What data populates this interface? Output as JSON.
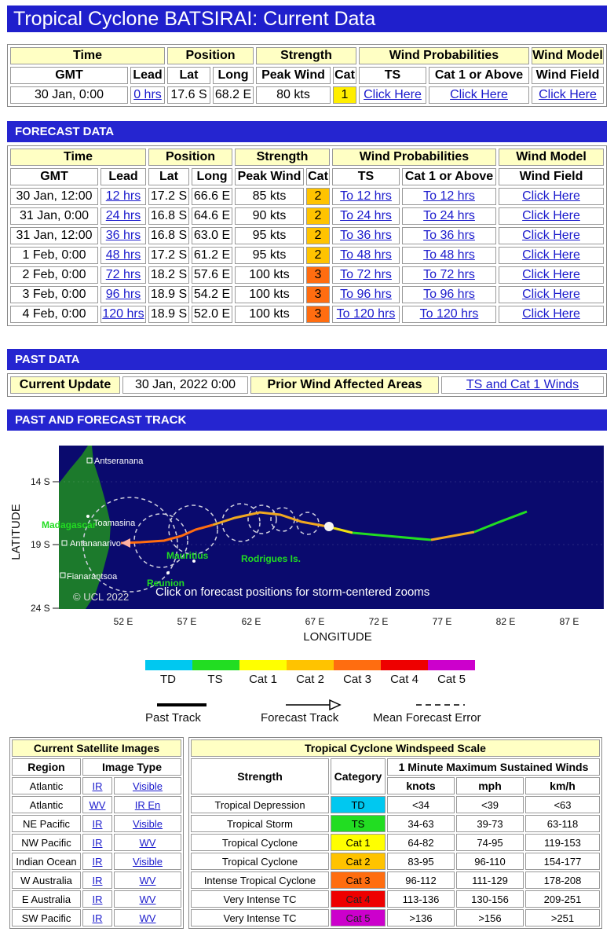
{
  "title": "Tropical Cyclone BATSIRAI: Current Data",
  "current": {
    "headers": {
      "time": "Time",
      "position": "Position",
      "strength": "Strength",
      "wind_prob": "Wind Probabilities",
      "wind_model": "Wind Model"
    },
    "subheaders": {
      "gmt": "GMT",
      "lead": "Lead",
      "lat": "Lat",
      "long": "Long",
      "peak": "Peak Wind",
      "cat": "Cat",
      "ts": "TS",
      "cat1": "Cat 1 or Above",
      "field": "Wind Field"
    },
    "row": {
      "gmt": "30 Jan, 0:00",
      "lead": "0 hrs",
      "lat": "17.6 S",
      "long": "68.2 E",
      "peak": "80 kts",
      "cat": "1",
      "ts": "Click Here",
      "cat1": "Click Here",
      "field": "Click Here"
    }
  },
  "forecast": {
    "section": "FORECAST DATA",
    "rows": [
      {
        "gmt": "30 Jan, 12:00",
        "lead": "12 hrs",
        "lat": "17.2 S",
        "long": "66.6 E",
        "peak": "85 kts",
        "cat": "2",
        "ts": "To 12 hrs",
        "cat1": "To 12 hrs",
        "field": "Click Here"
      },
      {
        "gmt": "31 Jan, 0:00",
        "lead": "24 hrs",
        "lat": "16.8 S",
        "long": "64.6 E",
        "peak": "90 kts",
        "cat": "2",
        "ts": "To 24 hrs",
        "cat1": "To 24 hrs",
        "field": "Click Here"
      },
      {
        "gmt": "31 Jan, 12:00",
        "lead": "36 hrs",
        "lat": "16.8 S",
        "long": "63.0 E",
        "peak": "95 kts",
        "cat": "2",
        "ts": "To 36 hrs",
        "cat1": "To 36 hrs",
        "field": "Click Here"
      },
      {
        "gmt": "1 Feb, 0:00",
        "lead": "48 hrs",
        "lat": "17.2 S",
        "long": "61.2 E",
        "peak": "95 kts",
        "cat": "2",
        "ts": "To 48 hrs",
        "cat1": "To 48 hrs",
        "field": "Click Here"
      },
      {
        "gmt": "2 Feb, 0:00",
        "lead": "72 hrs",
        "lat": "18.2 S",
        "long": "57.6 E",
        "peak": "100 kts",
        "cat": "3",
        "ts": "To 72 hrs",
        "cat1": "To 72 hrs",
        "field": "Click Here"
      },
      {
        "gmt": "3 Feb, 0:00",
        "lead": "96 hrs",
        "lat": "18.9 S",
        "long": "54.2 E",
        "peak": "100 kts",
        "cat": "3",
        "ts": "To 96 hrs",
        "cat1": "To 96 hrs",
        "field": "Click Here"
      },
      {
        "gmt": "4 Feb, 0:00",
        "lead": "120 hrs",
        "lat": "18.9 S",
        "long": "52.0 E",
        "peak": "100 kts",
        "cat": "3",
        "ts": "To 120 hrs",
        "cat1": "To 120 hrs",
        "field": "Click Here"
      }
    ]
  },
  "past": {
    "section": "PAST DATA",
    "current_update_label": "Current Update",
    "current_update_value": "30 Jan, 2022 0:00",
    "prior_label": "Prior Wind Affected Areas",
    "prior_link": "TS and Cat 1 Winds"
  },
  "track": {
    "section": "PAST AND FORECAST TRACK",
    "ylabel": "LATITUDE",
    "xlabel": "LONGITUDE",
    "yticks": [
      "14 S",
      "19 S",
      "24 S"
    ],
    "xticks": [
      "52 E",
      "57 E",
      "62 E",
      "67 E",
      "72 E",
      "77 E",
      "82 E",
      "87 E"
    ],
    "places": {
      "antseranana": "Antseranana",
      "toamasina": "Toamasina",
      "antananarivo": "Antananarivo",
      "fianarantsoa": "Fianarantsoa",
      "madagascar": "Madagascar",
      "mauritius": "Mauritius",
      "reunion": "Reunion",
      "rodrigues": "Rodrigues Is."
    },
    "copyright": "© UCL 2022",
    "note": "Click on forecast positions for storm-centered zooms",
    "colors": {
      "ocean": "#0a0a6e",
      "land": "#1c7a2c",
      "ts": "#22dd22",
      "cat1": "#f0e010",
      "cat2": "#f0a820",
      "cat3": "#ff6d10"
    }
  },
  "legend": {
    "scale": [
      {
        "label": "TD",
        "color": "#00c8f0"
      },
      {
        "label": "TS",
        "color": "#22dd22"
      },
      {
        "label": "Cat 1",
        "color": "#ffff00"
      },
      {
        "label": "Cat 2",
        "color": "#ffc300"
      },
      {
        "label": "Cat 3",
        "color": "#ff6d10"
      },
      {
        "label": "Cat 4",
        "color": "#ee0000"
      },
      {
        "label": "Cat 5",
        "color": "#cc00cc"
      }
    ],
    "past_track": "Past Track",
    "forecast_track": "Forecast Track",
    "mean_error": "Mean Forecast Error"
  },
  "satellite": {
    "title": "Current Satellite Images",
    "col_region": "Region",
    "col_type": "Image Type",
    "rows": [
      {
        "region": "Atlantic",
        "a": "IR",
        "b": "Visible"
      },
      {
        "region": "Atlantic",
        "a": "WV",
        "b": "IR En"
      },
      {
        "region": "NE Pacific",
        "a": "IR",
        "b": "Visible"
      },
      {
        "region": "NW Pacific",
        "a": "IR",
        "b": "WV"
      },
      {
        "region": "Indian Ocean",
        "a": "IR",
        "b": "Visible"
      },
      {
        "region": "W Australia",
        "a": "IR",
        "b": "WV"
      },
      {
        "region": "E Australia",
        "a": "IR",
        "b": "WV"
      },
      {
        "region": "SW Pacific",
        "a": "IR",
        "b": "WV"
      }
    ]
  },
  "scale": {
    "title": "Tropical Cyclone Windspeed Scale",
    "col_strength": "Strength",
    "col_category": "Category",
    "col_winds": "1 Minute Maximum Sustained Winds",
    "col_knots": "knots",
    "col_mph": "mph",
    "col_kmh": "km/h",
    "rows": [
      {
        "strength": "Tropical Depression",
        "cat": "TD",
        "color": "#00c8f0",
        "knots": "<34",
        "mph": "<39",
        "kmh": "<63"
      },
      {
        "strength": "Tropical Storm",
        "cat": "TS",
        "color": "#22dd22",
        "knots": "34-63",
        "mph": "39-73",
        "kmh": "63-118"
      },
      {
        "strength": "Tropical Cyclone",
        "cat": "Cat 1",
        "color": "#ffff00",
        "knots": "64-82",
        "mph": "74-95",
        "kmh": "119-153"
      },
      {
        "strength": "Tropical Cyclone",
        "cat": "Cat 2",
        "color": "#ffc300",
        "knots": "83-95",
        "mph": "96-110",
        "kmh": "154-177"
      },
      {
        "strength": "Intense Tropical Cyclone",
        "cat": "Cat 3",
        "color": "#ff6d10",
        "knots": "96-112",
        "mph": "111-129",
        "kmh": "178-208"
      },
      {
        "strength": "Very Intense TC",
        "cat": "Cat 4",
        "color": "#ee0000",
        "knots": "113-136",
        "mph": "130-156",
        "kmh": "209-251"
      },
      {
        "strength": "Very Intense TC",
        "cat": "Cat 5",
        "color": "#cc00cc",
        "knots": ">136",
        "mph": ">156",
        "kmh": ">251"
      }
    ]
  }
}
